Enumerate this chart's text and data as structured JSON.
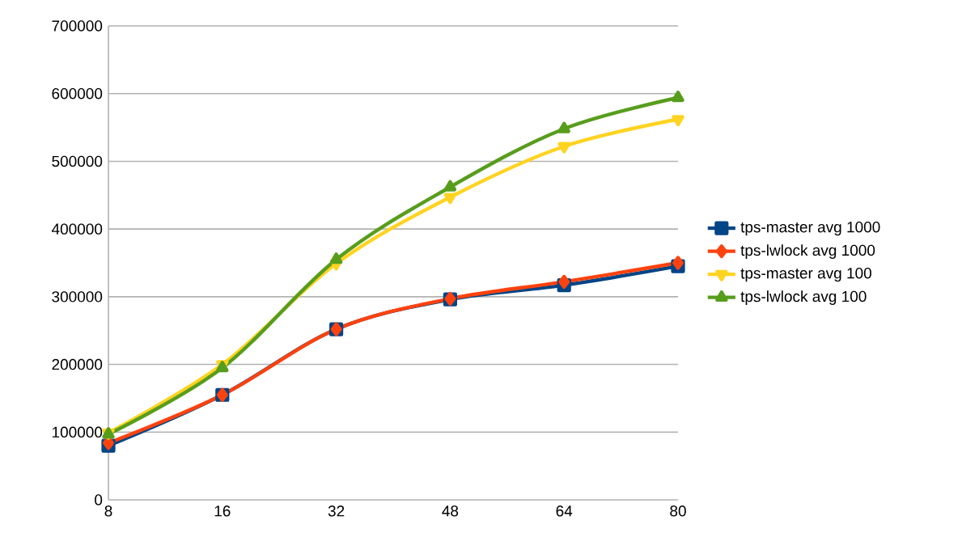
{
  "chart_data": {
    "type": "line",
    "categories": [
      "8",
      "16",
      "32",
      "48",
      "64",
      "80"
    ],
    "series": [
      {
        "name": "tps-master avg 1000",
        "color": "#004586",
        "marker": "square",
        "values": [
          80000,
          155000,
          252000,
          296000,
          317000,
          345000
        ]
      },
      {
        "name": "tps-lwlock avg 1000",
        "color": "#ff420e",
        "marker": "diamond",
        "values": [
          84000,
          155000,
          252000,
          297000,
          322000,
          350000
        ]
      },
      {
        "name": "tps-master avg 100",
        "color": "#ffd320",
        "marker": "triangle-down",
        "values": [
          99000,
          200000,
          349000,
          447000,
          522000,
          562000
        ]
      },
      {
        "name": "tps-lwlock avg 100",
        "color": "#579d1c",
        "marker": "triangle",
        "values": [
          97000,
          195000,
          355000,
          462000,
          548000,
          594000
        ]
      }
    ],
    "ylim": [
      0,
      700000
    ],
    "yticks": [
      0,
      100000,
      200000,
      300000,
      400000,
      500000,
      600000,
      700000
    ],
    "grid": "y",
    "legend": "right",
    "line_style": "solid"
  }
}
